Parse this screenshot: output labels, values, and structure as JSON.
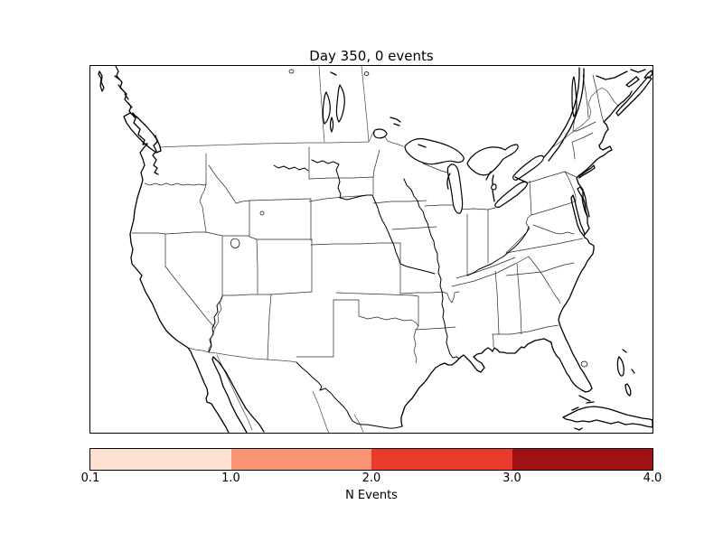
{
  "figure": {
    "title": "Day 350, 0 events"
  },
  "map": {
    "region": "Continental United States with state boundaries, southern Canada, northern Mexico, Cuba and the Bahamas",
    "land_color": "#ffffff",
    "water_color": "#ffffff",
    "coastline_color": "#000000",
    "state_border_color": "#2a2a2a",
    "event_markers_plotted": 0
  },
  "colorbar": {
    "label": "N Events",
    "orientation": "horizontal",
    "ticks": [
      "0.1",
      "1.0",
      "2.0",
      "3.0",
      "4.0"
    ],
    "segments": [
      {
        "range": "0.1-1.0",
        "color": "#fde0d2"
      },
      {
        "range": "1.0-2.0",
        "color": "#fb9474"
      },
      {
        "range": "2.0-3.0",
        "color": "#e93a2b"
      },
      {
        "range": "3.0-4.0",
        "color": "#a01115"
      }
    ],
    "outline_color": "#000000"
  },
  "chart_data": {
    "type": "map",
    "title": "Day 350, 0 events",
    "day": 350,
    "n_events": 0,
    "events": [],
    "region": "Continental United States (state boundaries) with southern Canada, northern Mexico, Cuba and Bahamas",
    "colorbar": {
      "label": "N Events",
      "orientation": "horizontal",
      "tick_values": [
        0.1,
        1.0,
        2.0,
        3.0,
        4.0
      ],
      "segment_bounds": [
        [
          0.1,
          1.0
        ],
        [
          1.0,
          2.0
        ],
        [
          2.0,
          3.0
        ],
        [
          3.0,
          4.0
        ]
      ],
      "segment_colors": [
        "#fde0d2",
        "#fb9474",
        "#e93a2b",
        "#a01115"
      ]
    }
  }
}
